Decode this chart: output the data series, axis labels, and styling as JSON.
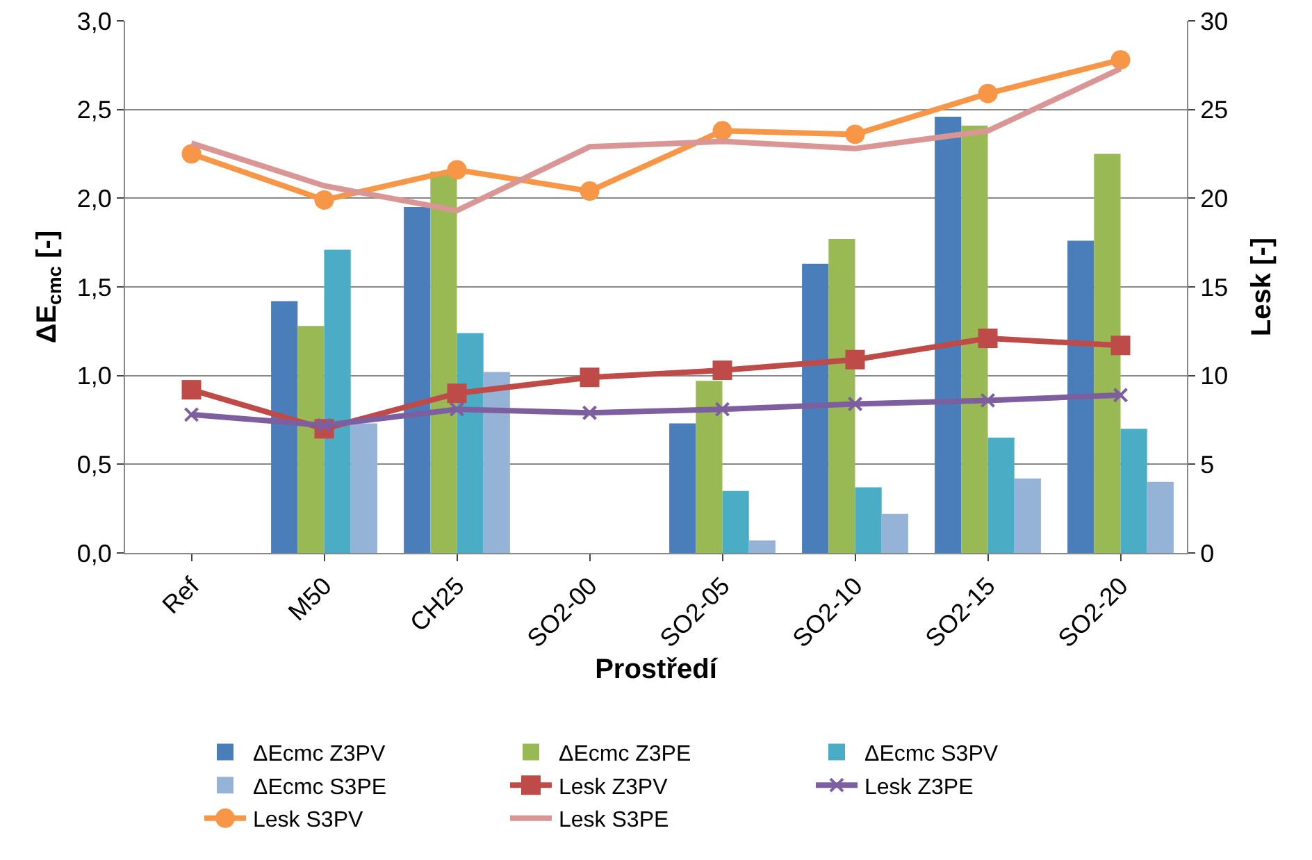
{
  "chart_data": {
    "type": "bar",
    "xlabel": "Prostředí",
    "ylabel": "ΔE$_{cmc}$ [-]",
    "y2label": "Lesk [-]",
    "categories": [
      "Ref",
      "M50",
      "CH25",
      "SO2-00",
      "SO2-05",
      "SO2-10",
      "SO2-15",
      "SO2-20"
    ],
    "series": [
      {
        "name": "ΔEcmc Z3PV",
        "color": "#4a7ebb",
        "values": [
          null,
          1.42,
          1.95,
          null,
          0.73,
          1.63,
          2.46,
          1.76
        ]
      },
      {
        "name": "ΔEcmc Z3PE",
        "color": "#98b954",
        "values": [
          null,
          1.28,
          2.15,
          null,
          0.97,
          1.77,
          2.41,
          2.25
        ]
      },
      {
        "name": "ΔEcmc S3PV",
        "color": "#4bacc6",
        "values": [
          null,
          1.71,
          1.24,
          null,
          0.35,
          0.37,
          0.65,
          0.7
        ]
      },
      {
        "name": "ΔEcmc S3PE",
        "color": "#95b3d7",
        "values": [
          null,
          0.73,
          1.02,
          null,
          0.07,
          0.22,
          0.42,
          0.4
        ]
      },
      {
        "name": "Lesk Z3PV",
        "type": "line",
        "axis": "y2",
        "marker": "square",
        "color": "#be4b48",
        "values": [
          9.2,
          7.0,
          9.0,
          9.9,
          10.3,
          10.9,
          12.1,
          11.7
        ]
      },
      {
        "name": "Lesk Z3PE",
        "type": "line",
        "axis": "y2",
        "marker": "cross",
        "color": "#7d5fa0",
        "values": [
          7.8,
          7.2,
          8.1,
          7.9,
          8.1,
          8.4,
          8.6,
          8.9
        ]
      },
      {
        "name": "Lesk S3PV",
        "type": "line",
        "axis": "y2",
        "marker": "circle",
        "color": "#f79646",
        "values": [
          22.5,
          19.9,
          21.6,
          20.4,
          23.8,
          23.6,
          25.9,
          27.8
        ]
      },
      {
        "name": "Lesk S3PE",
        "type": "line",
        "axis": "y2",
        "marker": "none",
        "color": "#d99694",
        "values": [
          23.1,
          20.7,
          19.3,
          22.9,
          23.2,
          22.8,
          23.8,
          27.3
        ]
      }
    ],
    "ylim": [
      0,
      3
    ],
    "yticks": [
      {
        "value": 0,
        "label": "0,0"
      },
      {
        "value": 0.5,
        "label": "0,5"
      },
      {
        "value": 1,
        "label": "1,0"
      },
      {
        "value": 1.5,
        "label": "1,5"
      },
      {
        "value": 2,
        "label": "2,0"
      },
      {
        "value": 2.5,
        "label": "2,5"
      },
      {
        "value": 3,
        "label": "3,0"
      }
    ],
    "y2lim": [
      0,
      30
    ],
    "y2ticks": [
      0,
      5,
      10,
      15,
      20,
      25,
      30
    ],
    "grid": "y",
    "legend": "bottom",
    "line_style": "solid"
  }
}
